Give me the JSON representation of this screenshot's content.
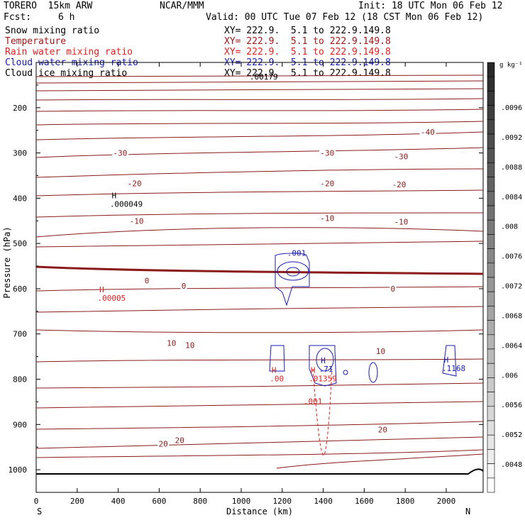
{
  "header": {
    "model": "TORERO  15km ARW",
    "center": "NCAR/MMM",
    "init": "Init: 18 UTC Mon 06 Feb 12",
    "fcst_label": "Fcst:",
    "fcst_value": "6 h",
    "valid": "Valid: 00 UTC Tue 07 Feb 12 (18 CST Mon 06 Feb 12)"
  },
  "fields": [
    {
      "name": "Snow mixing ratio",
      "xy": "XY= 222.9.  5.1 to 222.9.149.8",
      "color": "#000000"
    },
    {
      "name": "Temperature",
      "xy": "XY= 222.9.  5.1 to 222.9.149.8",
      "color": "#a01818"
    },
    {
      "name": "Rain water mixing ratio",
      "xy": "XY= 222.9.  5.1 to 222.9.149.8",
      "color": "#e02020"
    },
    {
      "name": "Cloud water mixing ratio",
      "xy": "XY= 222.9.  5.1 to 222.9.149.8",
      "color": "#1a1ab0"
    },
    {
      "name": "Cloud ice mixing ratio",
      "xy": "XY= 222.9.  5.1 to 222.9.149.8",
      "color": "#000000"
    }
  ],
  "chart_data": {
    "type": "contour",
    "xlabel": "Distance (km)",
    "ylabel": "Pressure (hPa)",
    "xlim": [
      0,
      2180
    ],
    "ylim": [
      1050,
      100
    ],
    "x_ticks": [
      0,
      200,
      400,
      600,
      800,
      1000,
      1200,
      1400,
      1600,
      1800,
      2000
    ],
    "y_ticks": [
      200,
      300,
      400,
      500,
      600,
      700,
      800,
      900,
      1000
    ],
    "x_end_labels": {
      "left": "S",
      "right": "N"
    },
    "colorbar": {
      "unit": "g kg⁻¹",
      "ticks": [
        ".0096",
        ".0092",
        ".0088",
        ".0084",
        ".008",
        ".0076",
        ".0072",
        ".0068",
        ".0064",
        ".006",
        ".0056",
        ".0052",
        ".0048"
      ]
    },
    "temperature_labels": [
      {
        "text": "-40",
        "x": 1910,
        "p": 254
      },
      {
        "text": "-30",
        "x": 410,
        "p": 300
      },
      {
        "text": "-30",
        "x": 1420,
        "p": 300
      },
      {
        "text": "-30",
        "x": 1780,
        "p": 308
      },
      {
        "text": "-20",
        "x": 480,
        "p": 367
      },
      {
        "text": "-20",
        "x": 1420,
        "p": 367
      },
      {
        "text": "-20",
        "x": 1770,
        "p": 370
      },
      {
        "text": "-10",
        "x": 490,
        "p": 450
      },
      {
        "text": "-10",
        "x": 1420,
        "p": 444
      },
      {
        "text": "-10",
        "x": 1780,
        "p": 452
      },
      {
        "text": "0",
        "x": 540,
        "p": 582
      },
      {
        "text": "0",
        "x": 720,
        "p": 594
      },
      {
        "text": "0",
        "x": 1740,
        "p": 600
      },
      {
        "text": "10",
        "x": 660,
        "p": 720
      },
      {
        "text": "10",
        "x": 750,
        "p": 725
      },
      {
        "text": "10",
        "x": 1680,
        "p": 738
      },
      {
        "text": "20",
        "x": 620,
        "p": 943
      },
      {
        "text": "20",
        "x": 700,
        "p": 935
      },
      {
        "text": "20",
        "x": 1690,
        "p": 911
      }
    ],
    "extrema": [
      {
        "mark": "H",
        "value": ".000049",
        "x": 380,
        "p": 400,
        "color": "#000000"
      },
      {
        "mark": "H",
        "value": ".00005",
        "x": 320,
        "p": 608,
        "color": "#e02020"
      },
      {
        "mark": "H",
        "value": ".00",
        "x": 1160,
        "p": 786,
        "color": "#e02020"
      },
      {
        "mark": "H",
        "value": ".01359",
        "x": 1350,
        "p": 786,
        "color": "#e02020"
      },
      {
        "mark": "H",
        "value": ".71",
        "x": 1400,
        "p": 765,
        "color": "#1a1ab0"
      },
      {
        "mark": "H",
        "value": ".1168",
        "x": 2000,
        "p": 763,
        "color": "#1a1ab0"
      }
    ],
    "contour_labels": [
      {
        "text": ".001",
        "x": 1270,
        "p": 527,
        "color": "#1a1ab0"
      },
      {
        "text": ".001",
        "x": 1350,
        "p": 855,
        "color": "#e02020"
      },
      {
        "text": ".00179",
        "x": 1110,
        "p": 138,
        "color": "#000000"
      }
    ]
  }
}
